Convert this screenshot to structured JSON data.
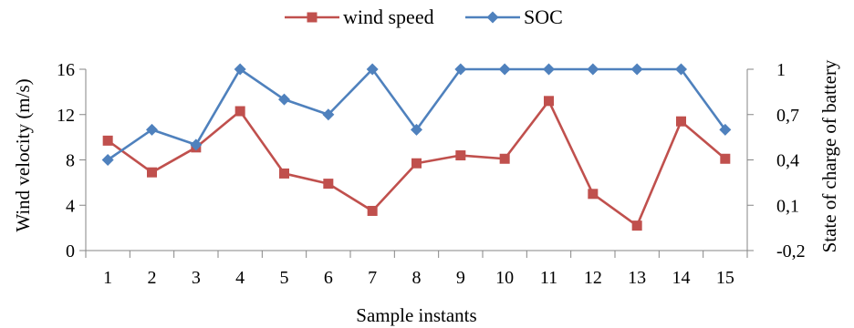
{
  "chart_data": {
    "type": "line",
    "x": [
      "1",
      "2",
      "3",
      "4",
      "5",
      "6",
      "7",
      "8",
      "9",
      "10",
      "11",
      "12",
      "13",
      "14",
      "15"
    ],
    "xlabel": "Sample instants",
    "ylabel_left": "Wind velocity  (m/s)",
    "ylabel_right": "State of charge of battery",
    "y_left": {
      "ticks": [
        "0",
        "4",
        "8",
        "12",
        "16"
      ],
      "ylim": [
        0,
        16
      ]
    },
    "y_right": {
      "ticks": [
        "-0,2",
        "0,1",
        "0,4",
        "0,7",
        "1"
      ],
      "ylim": [
        -0.2,
        1.0
      ]
    },
    "legend_position": "top-center",
    "series": [
      {
        "name": "wind speed",
        "axis": "left",
        "marker": "square",
        "color": "#C0504D",
        "values": [
          9.7,
          6.9,
          9.1,
          12.3,
          6.8,
          5.9,
          3.5,
          7.7,
          8.4,
          8.1,
          13.2,
          5.0,
          2.2,
          11.4,
          8.1
        ]
      },
      {
        "name": "SOC",
        "axis": "right",
        "marker": "diamond",
        "color": "#4F81BD",
        "values": [
          0.4,
          0.6,
          0.5,
          1.0,
          0.8,
          0.7,
          1.0,
          0.6,
          1.0,
          1.0,
          1.0,
          1.0,
          1.0,
          1.0,
          0.6
        ]
      }
    ]
  }
}
